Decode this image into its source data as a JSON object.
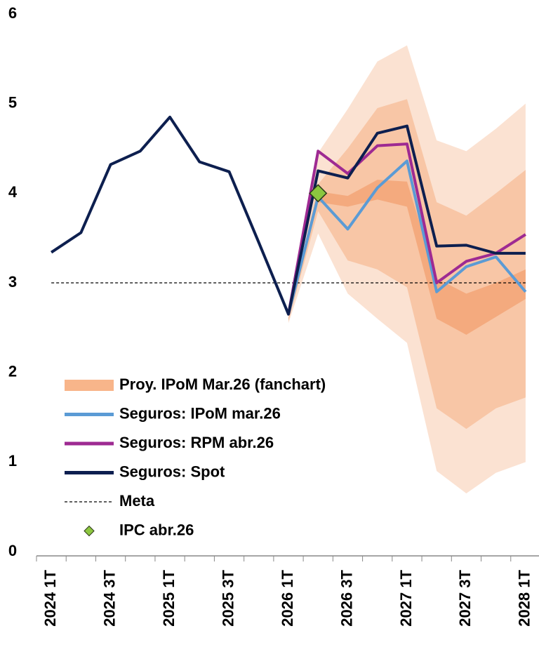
{
  "chart_data": {
    "type": "line",
    "categories": [
      "2024 1T",
      null,
      "2024 3T",
      null,
      "2025 1T",
      null,
      "2025 3T",
      null,
      "2026 1T",
      null,
      "2026 3T",
      null,
      "2027 1T",
      null,
      "2027 3T",
      null,
      "2028 1T"
    ],
    "ylim": [
      0,
      6
    ],
    "yticks": [
      0,
      1,
      2,
      3,
      4,
      5,
      6
    ],
    "fan": {
      "name": "Proy. IPoM Mar.26 (fanchart)",
      "color": "#f8b58a",
      "bands": [
        {
          "color": "#fbe2d2",
          "lower": [
            null,
            null,
            null,
            null,
            null,
            null,
            null,
            null,
            2.55,
            3.55,
            2.88,
            2.6,
            2.33,
            0.9,
            0.65,
            0.88,
            1.0
          ],
          "upper": [
            null,
            null,
            null,
            null,
            null,
            null,
            null,
            null,
            2.62,
            4.45,
            4.94,
            5.47,
            5.65,
            4.59,
            4.47,
            4.72,
            5.0
          ]
        },
        {
          "color": "#f8c6a6",
          "lower": [
            null,
            null,
            null,
            null,
            null,
            null,
            null,
            null,
            2.57,
            3.8,
            3.25,
            3.15,
            2.95,
            1.6,
            1.37,
            1.6,
            1.72
          ],
          "upper": [
            null,
            null,
            null,
            null,
            null,
            null,
            null,
            null,
            2.6,
            4.1,
            4.5,
            4.95,
            5.05,
            3.9,
            3.75,
            4.0,
            4.26
          ]
        },
        {
          "color": "#f4aa7e",
          "lower": [
            null,
            null,
            null,
            null,
            null,
            null,
            null,
            null,
            2.58,
            3.9,
            3.85,
            3.93,
            3.85,
            2.6,
            2.42,
            2.62,
            2.82
          ],
          "upper": [
            null,
            null,
            null,
            null,
            null,
            null,
            null,
            null,
            2.6,
            4.02,
            3.97,
            4.15,
            4.13,
            3.05,
            2.88,
            3.0,
            3.15
          ]
        }
      ]
    },
    "series": [
      {
        "name": "Seguros: IPoM mar.26",
        "color": "#5b9bd5",
        "style": "line",
        "values": [
          null,
          null,
          null,
          null,
          null,
          null,
          null,
          null,
          2.65,
          3.96,
          3.6,
          4.06,
          4.36,
          2.9,
          3.18,
          3.29,
          2.9
        ]
      },
      {
        "name": "Seguros: RPM abr.26",
        "color": "#9e2a92",
        "style": "line",
        "values": [
          null,
          null,
          null,
          null,
          null,
          null,
          null,
          null,
          2.65,
          4.47,
          4.22,
          4.53,
          4.55,
          3.0,
          3.24,
          3.33,
          3.54
        ]
      },
      {
        "name": "Seguros: Spot",
        "color": "#0d1f4f",
        "style": "line",
        "values": [
          3.34,
          3.56,
          4.32,
          4.47,
          4.85,
          4.35,
          4.24,
          3.45,
          2.65,
          4.25,
          4.17,
          4.67,
          4.75,
          3.41,
          3.42,
          3.33,
          3.33
        ]
      },
      {
        "name": "Meta",
        "color": "#000000",
        "style": "dashed",
        "values": [
          3,
          3,
          3,
          3,
          3,
          3,
          3,
          3,
          3,
          3,
          3,
          3,
          3,
          3,
          3,
          3,
          3
        ]
      },
      {
        "name": "IPC abr.26",
        "color": "#8cc63f",
        "style": "diamond",
        "values": [
          null,
          null,
          null,
          null,
          null,
          null,
          null,
          null,
          null,
          4.0,
          null,
          null,
          null,
          null,
          null,
          null,
          null
        ]
      }
    ]
  }
}
